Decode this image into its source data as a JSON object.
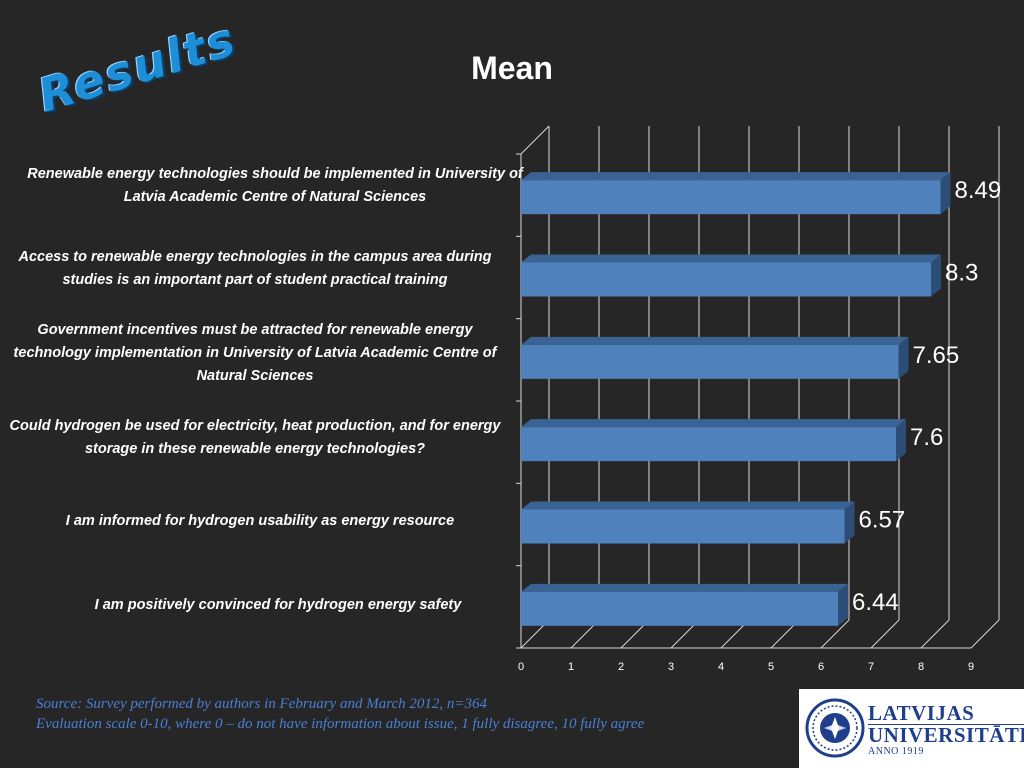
{
  "slide": {
    "heading": "Results",
    "source_line": "Source: Survey performed by authors in February and March 2012, n=364",
    "scale_line": "Evaluation scale 0-10, where 0 – do not have information about issue, 1 fully disagree, 10 fully agree"
  },
  "logo": {
    "line1": "LATVIJAS",
    "line2": "UNIVERSITĀTE",
    "line3": "ANNO 1919"
  },
  "chart_data": {
    "type": "bar",
    "orientation": "horizontal",
    "title": "Mean",
    "categories": [
      "Renewable energy technologies should be implemented in University of Latvia Academic Centre of Natural Sciences",
      "Access to renewable energy technologies in the campus area during studies is an important part of  student practical training",
      "Government incentives must be attracted for renewable energy technology implementation in University of Latvia Academic Centre of Natural Sciences",
      "Could hydrogen be used for electricity, heat production, and for energy storage in these renewable energy technologies?",
      "I am informed for hydrogen  usability as energy resource",
      "I am positively convinced for hydrogen energy safety"
    ],
    "values": [
      8.49,
      8.3,
      7.65,
      7.6,
      6.57,
      6.44
    ],
    "value_labels": [
      "8.49",
      "8.3",
      "7.65",
      "7.6",
      "6.57",
      "6.44"
    ],
    "xlim": [
      0,
      9
    ],
    "x_ticks": [
      "0",
      "1",
      "2",
      "3",
      "4",
      "5",
      "6",
      "7",
      "8",
      "9"
    ],
    "grid": "vertical",
    "style": "3d",
    "colors": {
      "bar_front": "#4f81bd",
      "bar_top": "#3a6394",
      "bar_side": "#2c4d75",
      "grid": "#d9d9d9",
      "value_label": "#ffffff",
      "background": "#262626"
    }
  }
}
